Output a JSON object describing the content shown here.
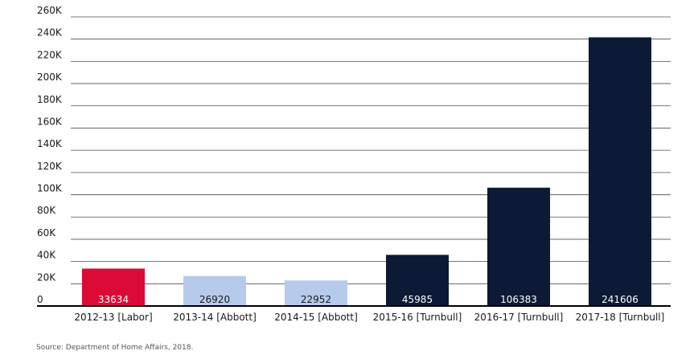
{
  "chart_data": {
    "type": "bar",
    "categories": [
      "2012-13 [Labor]",
      "2013-14 [Abbott]",
      "2014-15 [Abbott]",
      "2015-16 [Turnbull]",
      "2016-17 [Turnbull]",
      "2017-18 [Turnbull]"
    ],
    "values": [
      33634,
      26920,
      22952,
      45985,
      106383,
      241606
    ],
    "value_labels": [
      "33634",
      "26920",
      "22952",
      "45985",
      "106383",
      "241606"
    ],
    "bar_colors": [
      "#dc0a37",
      "#b6cbec",
      "#b6cbec",
      "#0c1a36",
      "#0c1a36",
      "#0c1a36"
    ],
    "label_colors": [
      "light",
      "dark",
      "dark",
      "light",
      "light",
      "light"
    ],
    "yticks": [
      0,
      20000,
      40000,
      60000,
      80000,
      100000,
      120000,
      140000,
      160000,
      180000,
      200000,
      220000,
      240000,
      260000
    ],
    "ytick_labels": [
      "0",
      "20K",
      "40K",
      "60K",
      "80K",
      "100K",
      "120K",
      "140K",
      "160K",
      "180K",
      "200K",
      "220K",
      "240K",
      "260K"
    ],
    "ylim": [
      0,
      260000
    ],
    "grid": true,
    "title": "",
    "xlabel": "",
    "ylabel": ""
  },
  "source": "Source: Department of Home Affairs, 2018."
}
